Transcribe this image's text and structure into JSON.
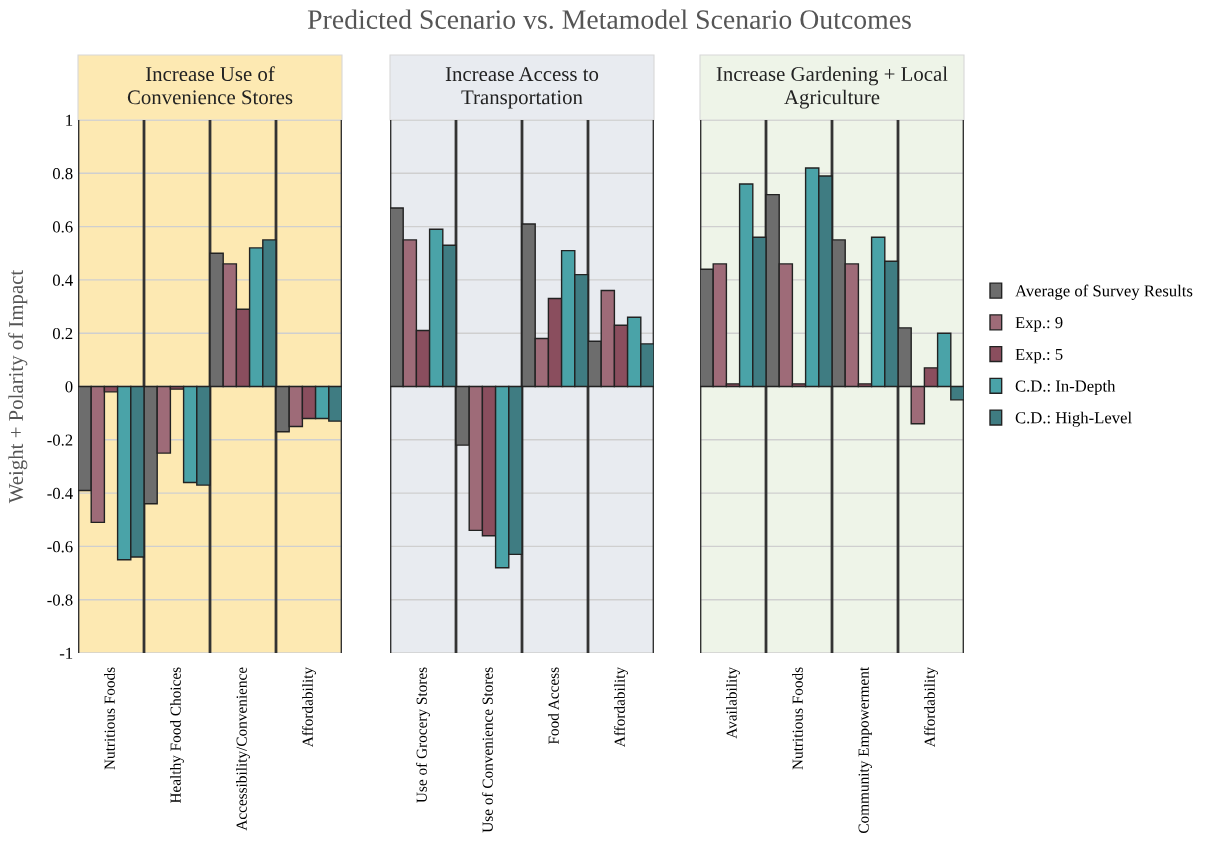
{
  "chart_data": [
    {
      "type": "bar",
      "title": "Increase Use of Convenience Stores",
      "ylabel": "Weight + Polarity of Impact",
      "annotations": [
        "Predicted Scenario vs. Metamodel Scenario Outcomes"
      ],
      "categories": [
        "Nutritious Foods",
        "Healthy Food Choices",
        "Accessibility/Convenience",
        "Affordability"
      ],
      "series": [
        {
          "name": "Average of Survey Results",
          "color": "#6d6d6d",
          "values": [
            -0.39,
            -0.44,
            0.5,
            -0.17
          ]
        },
        {
          "name": "Exp.: 9",
          "color": "#9e6b78",
          "values": [
            -0.51,
            -0.25,
            0.46,
            -0.15
          ]
        },
        {
          "name": "Exp.: 5",
          "color": "#8a4e5e",
          "values": [
            -0.02,
            -0.01,
            0.29,
            -0.12
          ]
        },
        {
          "name": "C.D.: In-Depth",
          "color": "#4aa3a8",
          "values": [
            -0.65,
            -0.36,
            0.52,
            -0.12
          ]
        },
        {
          "name": "C.D.: High-Level",
          "color": "#3f7c82",
          "values": [
            -0.64,
            -0.37,
            0.55,
            -0.13
          ]
        }
      ],
      "ylim": [
        -1,
        1
      ],
      "yticks": [
        -1,
        -0.8,
        -0.6,
        -0.4,
        -0.2,
        0,
        0.2,
        0.4,
        0.6,
        0.8,
        1
      ],
      "grid": true,
      "legend": "right",
      "bands": [
        {
          "axis": "y",
          "from": -1,
          "to": 1,
          "color": "#fde9b2"
        }
      ]
    },
    {
      "type": "bar",
      "title": "Increase Access to Transportation",
      "categories": [
        "Use of Grocery Stores",
        "Use of Convenience Stores",
        "Food Access",
        "Affordability"
      ],
      "series": [
        {
          "color": "#6d6d6d",
          "values": [
            0.67,
            -0.22,
            0.61,
            0.17
          ]
        },
        {
          "color": "#9e6b78",
          "values": [
            0.55,
            -0.54,
            0.18,
            0.36
          ]
        },
        {
          "color": "#8a4e5e",
          "values": [
            0.21,
            -0.56,
            0.33,
            0.23
          ]
        },
        {
          "color": "#4aa3a8",
          "values": [
            0.59,
            -0.68,
            0.51,
            0.26
          ]
        },
        {
          "color": "#3f7c82",
          "values": [
            0.53,
            -0.63,
            0.42,
            0.16
          ]
        }
      ],
      "ylim": [
        -1,
        1
      ],
      "yticks": [
        -1,
        -0.8,
        -0.6,
        -0.4,
        -0.2,
        0,
        0.2,
        0.4,
        0.6,
        0.8,
        1
      ],
      "tick_labels": "x",
      "grid": true,
      "bands": [
        {
          "axis": "y",
          "from": -1,
          "to": 1,
          "color": "#e8ebf0"
        }
      ]
    },
    {
      "type": "bar",
      "title": "Increase Gardening + Local Agriculture",
      "categories": [
        "Availability",
        "Nutritious Foods",
        "Community Empowerment",
        "Affordability"
      ],
      "series": [
        {
          "color": "#6d6d6d",
          "values": [
            0.44,
            0.72,
            0.55,
            0.22
          ]
        },
        {
          "color": "#9e6b78",
          "values": [
            0.46,
            0.46,
            0.46,
            -0.14
          ]
        },
        {
          "color": "#8a4e5e",
          "values": [
            0.01,
            0.01,
            0.01,
            0.07
          ]
        },
        {
          "color": "#4aa3a8",
          "values": [
            0.76,
            0.82,
            0.56,
            0.2
          ]
        },
        {
          "color": "#3f7c82",
          "values": [
            0.56,
            0.79,
            0.47,
            -0.05
          ]
        }
      ],
      "ylim": [
        -1,
        1
      ],
      "yticks": [
        -1,
        -0.8,
        -0.6,
        -0.4,
        -0.2,
        0,
        0.2,
        0.4,
        0.6,
        0.8,
        1
      ],
      "tick_labels": "x",
      "grid": true,
      "bands": [
        {
          "axis": "y",
          "from": -1,
          "to": 1,
          "color": "#eef4e8"
        }
      ]
    }
  ]
}
